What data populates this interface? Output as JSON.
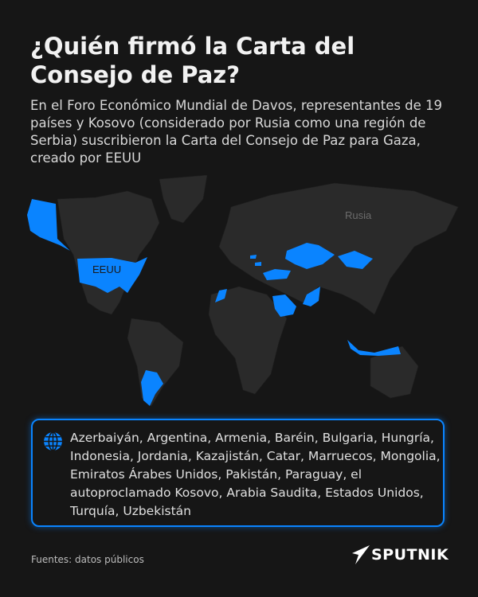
{
  "header": {
    "title": "¿Quién firmó la Carta del Consejo de Paz?",
    "subtitle": "En el Foro Económico Mundial de Davos, representantes de 19 países y Kosovo (considerado por Rusia como una región de Serbia) suscribieron la Carta del Consejo de Paz para Gaza, creado por EEUU"
  },
  "map": {
    "labels": {
      "usa": "EEUU",
      "russia": "Rusia"
    },
    "highlight_color": "#0a84ff",
    "land_color": "#2a2a2a",
    "highlighted_countries": [
      "Azerbaiyán",
      "Argentina",
      "Armenia",
      "Baréin",
      "Bulgaria",
      "Hungría",
      "Indonesia",
      "Jordania",
      "Kazajistán",
      "Catar",
      "Marruecos",
      "Mongolia",
      "Emiratos Árabes Unidos",
      "Pakistán",
      "Paraguay",
      "Kosovo",
      "Arabia Saudita",
      "Estados Unidos",
      "Turquía",
      "Uzbekistán"
    ]
  },
  "list": {
    "icon": "globe-icon",
    "text": "Azerbaiyán, Argentina, Armenia, Baréin, Bulgaria, Hungría, Indonesia, Jordania, Kazajistán, Catar, Marruecos, Mongolia, Emiratos Árabes Unidos, Pakistán, Paraguay, el autoproclamado Kosovo, Arabia Saudita, Estados Unidos, Turquía, Uzbekistán"
  },
  "footer": {
    "source": "Fuentes: datos públicos",
    "logo": "SPUTNIK"
  }
}
